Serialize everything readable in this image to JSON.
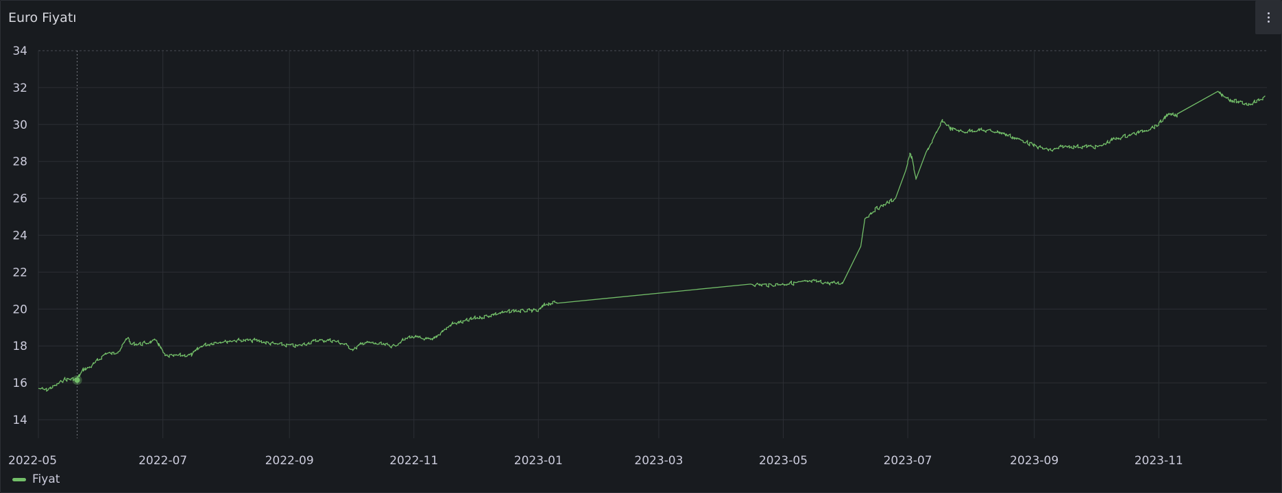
{
  "panel": {
    "title": "Euro Fiyatı",
    "menu_icon": "kebab-vertical-icon"
  },
  "colors": {
    "background": "#181b1f",
    "grid": "#2c2f35",
    "series": "#73bf69",
    "text": "#ccccdc"
  },
  "chart_data": {
    "type": "line",
    "title": "Euro Fiyatı",
    "xlabel": "",
    "ylabel": "",
    "x_type": "date",
    "xlim": [
      "2022-05-01",
      "2023-12-24"
    ],
    "ylim": [
      13,
      34
    ],
    "y_ticks": [
      14,
      16,
      18,
      20,
      22,
      24,
      26,
      28,
      30,
      32,
      34
    ],
    "x_ticks": [
      "2022-05",
      "2022-07",
      "2022-09",
      "2022-11",
      "2023-01",
      "2023-03",
      "2023-05",
      "2023-07",
      "2023-09",
      "2023-11"
    ],
    "grid": true,
    "legend": "bottom-left",
    "highlight": {
      "x": "2022-05-20",
      "y": 16.15
    },
    "series": [
      {
        "name": "Fiyat",
        "x": [
          "2022-05-01",
          "2022-05-05",
          "2022-05-10",
          "2022-05-14",
          "2022-05-20",
          "2022-05-23",
          "2022-05-27",
          "2022-05-31",
          "2022-06-03",
          "2022-06-07",
          "2022-06-10",
          "2022-06-14",
          "2022-06-15",
          "2022-06-20",
          "2022-06-25",
          "2022-06-28",
          "2022-07-02",
          "2022-07-15",
          "2022-07-20",
          "2022-07-27",
          "2022-08-05",
          "2022-08-15",
          "2022-08-25",
          "2022-09-05",
          "2022-09-15",
          "2022-09-22",
          "2022-09-28",
          "2022-10-02",
          "2022-10-08",
          "2022-10-15",
          "2022-10-22",
          "2022-10-30",
          "2022-11-05",
          "2022-11-10",
          "2022-11-15",
          "2022-11-20",
          "2022-11-25",
          "2022-12-01",
          "2022-12-10",
          "2022-12-20",
          "2023-01-01",
          "2023-01-05",
          "2023-01-10",
          "2023-04-15",
          "2023-04-25",
          "2023-05-05",
          "2023-05-15",
          "2023-05-25",
          "2023-05-30",
          "2023-06-08",
          "2023-06-10",
          "2023-06-15",
          "2023-06-22",
          "2023-06-25",
          "2023-06-30",
          "2023-07-02",
          "2023-07-03",
          "2023-07-05",
          "2023-07-10",
          "2023-07-15",
          "2023-07-18",
          "2023-07-22",
          "2023-07-28",
          "2023-08-05",
          "2023-08-15",
          "2023-09-05",
          "2023-09-10",
          "2023-09-15",
          "2023-10-03",
          "2023-10-10",
          "2023-10-20",
          "2023-10-26",
          "2023-11-01",
          "2023-11-05",
          "2023-11-10",
          "2023-11-30",
          "2023-12-05",
          "2023-12-10",
          "2023-12-15",
          "2023-12-20",
          "2023-12-23"
        ],
        "y": [
          15.7,
          15.6,
          15.9,
          16.2,
          16.2,
          16.7,
          16.9,
          17.3,
          17.6,
          17.6,
          17.8,
          18.5,
          18.1,
          18.1,
          18.2,
          18.3,
          17.45,
          17.5,
          18.0,
          18.2,
          18.3,
          18.3,
          18.1,
          18.0,
          18.3,
          18.3,
          18.1,
          17.8,
          18.2,
          18.1,
          18.0,
          18.5,
          18.4,
          18.3,
          18.8,
          19.2,
          19.3,
          19.5,
          19.7,
          19.9,
          19.9,
          20.3,
          20.35,
          21.35,
          21.3,
          21.4,
          21.5,
          21.4,
          21.4,
          23.4,
          24.9,
          25.4,
          25.8,
          26.0,
          27.5,
          28.4,
          28.2,
          27.0,
          28.5,
          29.5,
          30.2,
          29.8,
          29.6,
          29.7,
          29.6,
          28.7,
          28.6,
          28.8,
          28.8,
          29.2,
          29.5,
          29.7,
          30.0,
          30.5,
          30.5,
          31.8,
          31.4,
          31.2,
          31.1,
          31.3,
          31.5
        ]
      }
    ]
  }
}
